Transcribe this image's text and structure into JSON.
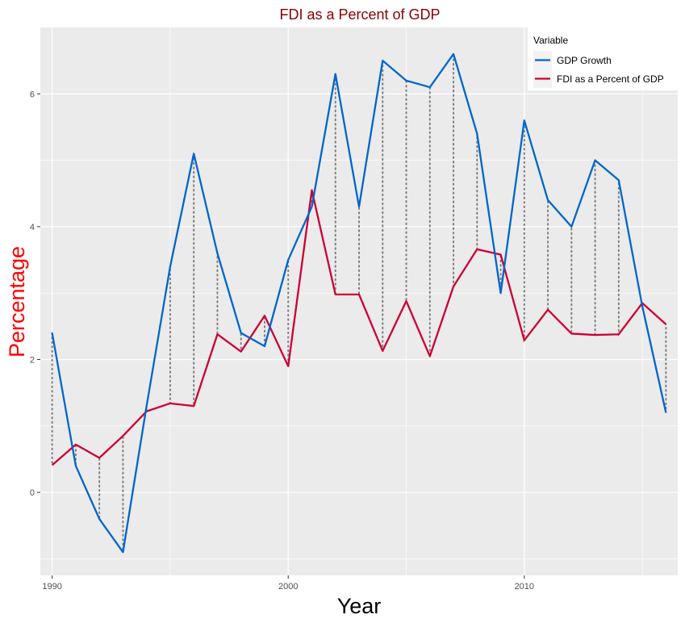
{
  "chart_data": {
    "type": "line",
    "title": "FDI as a Percent of GDP",
    "xlabel": "Year",
    "ylabel": "Percentage",
    "xlim": [
      1989.5,
      2016.5
    ],
    "ylim": [
      -1.25,
      7.0
    ],
    "x_ticks": [
      1990,
      2000,
      2010
    ],
    "y_ticks": [
      0,
      2,
      4,
      6
    ],
    "grid": true,
    "x": [
      1990,
      1991,
      1992,
      1993,
      1994,
      1995,
      1996,
      1997,
      1998,
      1999,
      2000,
      2001,
      2002,
      2003,
      2004,
      2005,
      2006,
      2007,
      2008,
      2009,
      2010,
      2011,
      2012,
      2013,
      2014,
      2015,
      2016
    ],
    "series": [
      {
        "name": "GDP Growth",
        "color": "#0066cc",
        "values": [
          2.4,
          0.4,
          -0.4,
          -0.9,
          1.3,
          3.4,
          5.1,
          3.6,
          2.4,
          2.2,
          3.5,
          4.3,
          6.3,
          4.3,
          6.5,
          6.2,
          6.1,
          6.6,
          5.4,
          3.0,
          5.6,
          4.4,
          4.0,
          5.0,
          4.7,
          2.8,
          1.2
        ]
      },
      {
        "name": "FDI as a Percent of GDP",
        "color": "#cc0033",
        "values": [
          0.41,
          0.72,
          0.52,
          0.85,
          1.22,
          1.34,
          1.3,
          2.38,
          2.12,
          2.66,
          1.9,
          4.55,
          2.98,
          2.98,
          2.13,
          2.88,
          2.05,
          3.1,
          3.66,
          3.58,
          2.29,
          2.75,
          2.39,
          2.37,
          2.38,
          2.85,
          2.53
        ]
      }
    ],
    "connector_style": "dotted",
    "connector_color": "#7f7f7f",
    "legend": {
      "title": "Variable",
      "position": "top-right"
    },
    "title_color": "#8b0000",
    "ylabel_color": "#ff0000"
  }
}
